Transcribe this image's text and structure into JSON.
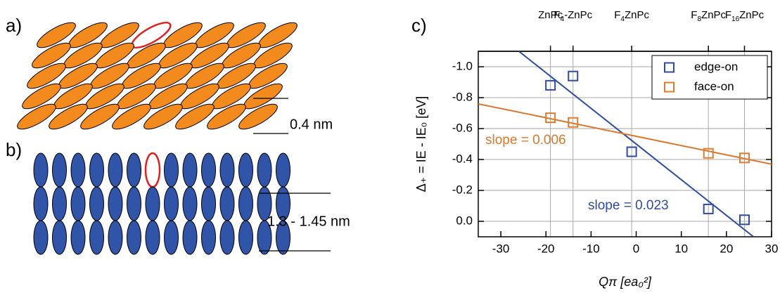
{
  "panel_a": {
    "label": "a)",
    "spacing": "0.4 nm"
  },
  "panel_b": {
    "label": "b)",
    "spacing": "1.3 - 1.45 nm"
  },
  "chart_data": {
    "type": "scatter",
    "label": "c)",
    "x_label": "Qπ [ea₀²]",
    "y_label": "Δ₊ = IE - IE₀ [eV]",
    "xlim": [
      -35,
      30
    ],
    "xticks": [
      -30,
      -20,
      -10,
      0,
      10,
      20,
      30
    ],
    "ylim": [
      0.1,
      -1.1
    ],
    "yticks": [
      {
        "value": 0,
        "label": "0.0"
      },
      {
        "value": -0.2,
        "label": "-0.2"
      },
      {
        "value": -0.4,
        "label": "-0.4"
      },
      {
        "value": -0.6,
        "label": "-0.6"
      },
      {
        "value": -0.8,
        "label": "-0.8"
      },
      {
        "value": -1,
        "label": "-1.0"
      }
    ],
    "x2ticks": [
      {
        "value": -19,
        "label": "ZnPc"
      },
      {
        "value": -14,
        "label": "F4-ZnPc"
      },
      {
        "value": -1,
        "label": "F4ZnPc"
      },
      {
        "value": 16,
        "label": "F8ZnPc"
      },
      {
        "value": 24,
        "label": "F16ZnPc"
      }
    ],
    "grid": true,
    "legend": "top right",
    "series": [
      {
        "name": "edge-on",
        "color": "#2f4c9e",
        "x": [
          -19,
          -14,
          -1,
          16,
          24
        ],
        "values": [
          -0.88,
          -0.94,
          -0.45,
          -0.08,
          -0.01
        ]
      },
      {
        "name": "face-on",
        "color": "#e07b30",
        "x": [
          -19,
          -14,
          16,
          24
        ],
        "values": [
          -0.67,
          -0.64,
          -0.44,
          -0.41
        ]
      }
    ],
    "fits": [
      {
        "color": "#2f4c9e",
        "x": [
          -26,
          26
        ],
        "values": [
          -1.1,
          0.1
        ],
        "annotation": "slope = 0.023"
      },
      {
        "color": "#d9782f",
        "x": [
          -35,
          30
        ],
        "values": [
          -0.76,
          -0.37
        ],
        "annotation": "slope = 0.006"
      }
    ]
  }
}
